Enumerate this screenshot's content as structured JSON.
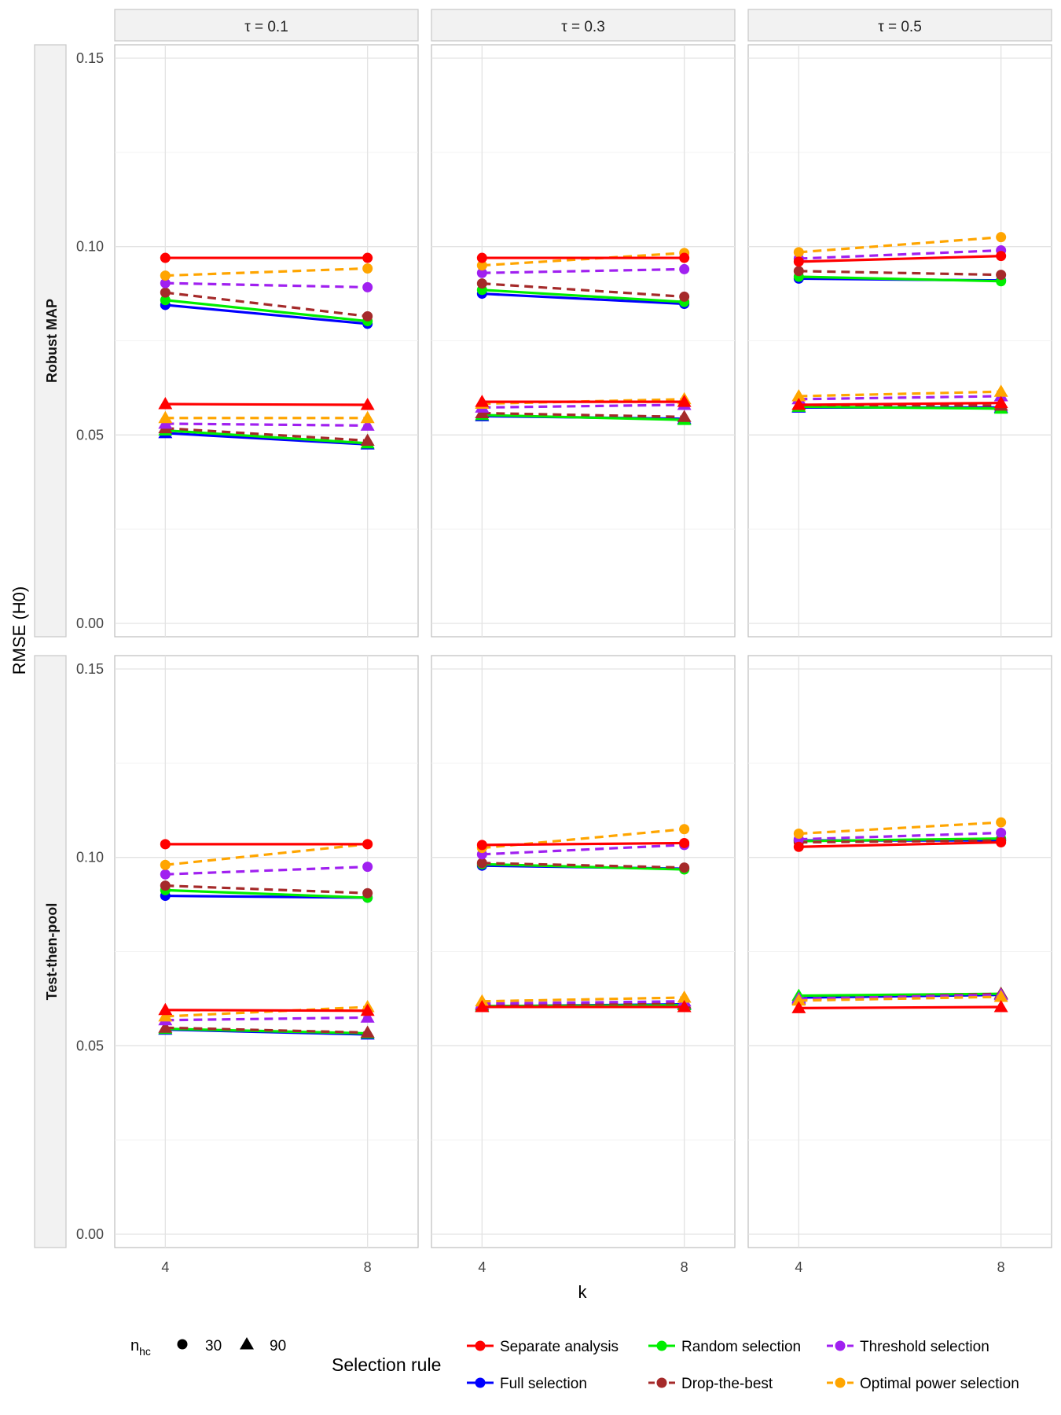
{
  "figure": {
    "ylabel": "RMSE (H0)",
    "xlabel": "k",
    "col_strips": [
      "τ = 0.1",
      "τ = 0.3",
      "τ = 0.5"
    ],
    "row_strips": [
      "Robust MAP",
      "Test-then-pool"
    ],
    "x_ticks": [
      "4",
      "8"
    ],
    "y_ticks": [
      "0.00",
      "0.05",
      "0.10",
      "0.15"
    ]
  },
  "legend": {
    "nhc_title_main": "n",
    "nhc_title_sub": "hc",
    "nhc_items": [
      {
        "label": "30",
        "shape": "circle"
      },
      {
        "label": "90",
        "shape": "triangle"
      }
    ],
    "rule_title": "Selection rule",
    "rule_items": [
      {
        "label": "Separate analysis",
        "color": "#ff0000",
        "dashed": false
      },
      {
        "label": "Full selection",
        "color": "#0000ff",
        "dashed": false
      },
      {
        "label": "Random selection",
        "color": "#00ee00",
        "dashed": false
      },
      {
        "label": "Drop-the-best",
        "color": "#a52a2a",
        "dashed": true
      },
      {
        "label": "Threshold selection",
        "color": "#a020f0",
        "dashed": true
      },
      {
        "label": "Optimal power selection",
        "color": "#ffa500",
        "dashed": true
      }
    ]
  },
  "chart_data": {
    "type": "line",
    "x": [
      4,
      8
    ],
    "ylim": [
      0,
      0.15
    ],
    "grid": true,
    "panels": [
      {
        "row": "Robust MAP",
        "col": "τ = 0.1",
        "series": [
          {
            "rule": "Separate analysis",
            "nhc": 30,
            "values": [
              0.097,
              0.097
            ]
          },
          {
            "rule": "Full selection",
            "nhc": 30,
            "values": [
              0.0845,
              0.0795
            ]
          },
          {
            "rule": "Random selection",
            "nhc": 30,
            "values": [
              0.0858,
              0.0802
            ]
          },
          {
            "rule": "Drop-the-best",
            "nhc": 30,
            "values": [
              0.0878,
              0.0815
            ]
          },
          {
            "rule": "Threshold selection",
            "nhc": 30,
            "values": [
              0.0903,
              0.0892
            ]
          },
          {
            "rule": "Optimal power selection",
            "nhc": 30,
            "values": [
              0.0923,
              0.0942
            ]
          },
          {
            "rule": "Separate analysis",
            "nhc": 90,
            "values": [
              0.0582,
              0.058
            ]
          },
          {
            "rule": "Full selection",
            "nhc": 90,
            "values": [
              0.0505,
              0.0475
            ]
          },
          {
            "rule": "Random selection",
            "nhc": 90,
            "values": [
              0.0512,
              0.0478
            ]
          },
          {
            "rule": "Drop-the-best",
            "nhc": 90,
            "values": [
              0.0518,
              0.0485
            ]
          },
          {
            "rule": "Threshold selection",
            "nhc": 90,
            "values": [
              0.053,
              0.0525
            ]
          },
          {
            "rule": "Optimal power selection",
            "nhc": 90,
            "values": [
              0.0545,
              0.0545
            ]
          }
        ]
      },
      {
        "row": "Robust MAP",
        "col": "τ = 0.3",
        "series": [
          {
            "rule": "Separate analysis",
            "nhc": 30,
            "values": [
              0.097,
              0.097
            ]
          },
          {
            "rule": "Full selection",
            "nhc": 30,
            "values": [
              0.0875,
              0.0848
            ]
          },
          {
            "rule": "Random selection",
            "nhc": 30,
            "values": [
              0.0885,
              0.0853
            ]
          },
          {
            "rule": "Drop-the-best",
            "nhc": 30,
            "values": [
              0.0902,
              0.0867
            ]
          },
          {
            "rule": "Threshold selection",
            "nhc": 30,
            "values": [
              0.093,
              0.094
            ]
          },
          {
            "rule": "Optimal power selection",
            "nhc": 30,
            "values": [
              0.095,
              0.0983
            ]
          },
          {
            "rule": "Separate analysis",
            "nhc": 90,
            "values": [
              0.0588,
              0.0588
            ]
          },
          {
            "rule": "Full selection",
            "nhc": 90,
            "values": [
              0.055,
              0.0543
            ]
          },
          {
            "rule": "Random selection",
            "nhc": 90,
            "values": [
              0.0553,
              0.054
            ]
          },
          {
            "rule": "Drop-the-best",
            "nhc": 90,
            "values": [
              0.0558,
              0.0548
            ]
          },
          {
            "rule": "Threshold selection",
            "nhc": 90,
            "values": [
              0.0573,
              0.058
            ]
          },
          {
            "rule": "Optimal power selection",
            "nhc": 90,
            "values": [
              0.0583,
              0.0595
            ]
          }
        ]
      },
      {
        "row": "Robust MAP",
        "col": "τ = 0.5",
        "series": [
          {
            "rule": "Separate analysis",
            "nhc": 30,
            "values": [
              0.096,
              0.0975
            ]
          },
          {
            "rule": "Full selection",
            "nhc": 30,
            "values": [
              0.0915,
              0.091
            ]
          },
          {
            "rule": "Random selection",
            "nhc": 30,
            "values": [
              0.092,
              0.0908
            ]
          },
          {
            "rule": "Drop-the-best",
            "nhc": 30,
            "values": [
              0.0935,
              0.0925
            ]
          },
          {
            "rule": "Threshold selection",
            "nhc": 30,
            "values": [
              0.0968,
              0.099
            ]
          },
          {
            "rule": "Optimal power selection",
            "nhc": 30,
            "values": [
              0.0985,
              0.1025
            ]
          },
          {
            "rule": "Separate analysis",
            "nhc": 90,
            "values": [
              0.058,
              0.0585
            ]
          },
          {
            "rule": "Full selection",
            "nhc": 90,
            "values": [
              0.0573,
              0.0573
            ]
          },
          {
            "rule": "Random selection",
            "nhc": 90,
            "values": [
              0.0575,
              0.057
            ]
          },
          {
            "rule": "Drop-the-best",
            "nhc": 90,
            "values": [
              0.058,
              0.0578
            ]
          },
          {
            "rule": "Threshold selection",
            "nhc": 90,
            "values": [
              0.0595,
              0.0603
            ]
          },
          {
            "rule": "Optimal power selection",
            "nhc": 90,
            "values": [
              0.0603,
              0.0615
            ]
          }
        ]
      },
      {
        "row": "Test-then-pool",
        "col": "τ = 0.1",
        "series": [
          {
            "rule": "Separate analysis",
            "nhc": 30,
            "values": [
              0.1035,
              0.1035
            ]
          },
          {
            "rule": "Full selection",
            "nhc": 30,
            "values": [
              0.0898,
              0.0893
            ]
          },
          {
            "rule": "Random selection",
            "nhc": 30,
            "values": [
              0.0913,
              0.0893
            ]
          },
          {
            "rule": "Drop-the-best",
            "nhc": 30,
            "values": [
              0.0925,
              0.0905
            ]
          },
          {
            "rule": "Threshold selection",
            "nhc": 30,
            "values": [
              0.0955,
              0.0975
            ]
          },
          {
            "rule": "Optimal power selection",
            "nhc": 30,
            "values": [
              0.098,
              0.1035
            ]
          },
          {
            "rule": "Separate analysis",
            "nhc": 90,
            "values": [
              0.0595,
              0.0593
            ]
          },
          {
            "rule": "Full selection",
            "nhc": 90,
            "values": [
              0.0543,
              0.053
            ]
          },
          {
            "rule": "Random selection",
            "nhc": 90,
            "values": [
              0.0545,
              0.0533
            ]
          },
          {
            "rule": "Drop-the-best",
            "nhc": 90,
            "values": [
              0.0548,
              0.0535
            ]
          },
          {
            "rule": "Threshold selection",
            "nhc": 90,
            "values": [
              0.0568,
              0.0575
            ]
          },
          {
            "rule": "Optimal power selection",
            "nhc": 90,
            "values": [
              0.0578,
              0.0603
            ]
          }
        ]
      },
      {
        "row": "Test-then-pool",
        "col": "τ = 0.3",
        "series": [
          {
            "rule": "Separate analysis",
            "nhc": 30,
            "values": [
              0.1033,
              0.1038
            ]
          },
          {
            "rule": "Full selection",
            "nhc": 30,
            "values": [
              0.0978,
              0.097
            ]
          },
          {
            "rule": "Random selection",
            "nhc": 30,
            "values": [
              0.0982,
              0.0968
            ]
          },
          {
            "rule": "Drop-the-best",
            "nhc": 30,
            "values": [
              0.0985,
              0.0973
            ]
          },
          {
            "rule": "Threshold selection",
            "nhc": 30,
            "values": [
              0.1008,
              0.1033
            ]
          },
          {
            "rule": "Optimal power selection",
            "nhc": 30,
            "values": [
              0.1025,
              0.1075
            ]
          },
          {
            "rule": "Separate analysis",
            "nhc": 90,
            "values": [
              0.0603,
              0.0603
            ]
          },
          {
            "rule": "Full selection",
            "nhc": 90,
            "values": [
              0.0605,
              0.061
            ]
          },
          {
            "rule": "Random selection",
            "nhc": 90,
            "values": [
              0.0605,
              0.0608
            ]
          },
          {
            "rule": "Drop-the-best",
            "nhc": 90,
            "values": [
              0.0608,
              0.0613
            ]
          },
          {
            "rule": "Threshold selection",
            "nhc": 90,
            "values": [
              0.0612,
              0.0618
            ]
          },
          {
            "rule": "Optimal power selection",
            "nhc": 90,
            "values": [
              0.0618,
              0.0628
            ]
          }
        ]
      },
      {
        "row": "Test-then-pool",
        "col": "τ = 0.5",
        "series": [
          {
            "rule": "Separate analysis",
            "nhc": 30,
            "values": [
              0.1028,
              0.104
            ]
          },
          {
            "rule": "Full selection",
            "nhc": 30,
            "values": [
              0.1045,
              0.1045
            ]
          },
          {
            "rule": "Random selection",
            "nhc": 30,
            "values": [
              0.1043,
              0.105
            ]
          },
          {
            "rule": "Drop-the-best",
            "nhc": 30,
            "values": [
              0.104,
              0.1045
            ]
          },
          {
            "rule": "Threshold selection",
            "nhc": 30,
            "values": [
              0.1048,
              0.1065
            ]
          },
          {
            "rule": "Optimal power selection",
            "nhc": 30,
            "values": [
              0.1063,
              0.1093
            ]
          },
          {
            "rule": "Separate analysis",
            "nhc": 90,
            "values": [
              0.06,
              0.0603
            ]
          },
          {
            "rule": "Full selection",
            "nhc": 90,
            "values": [
              0.0628,
              0.0635
            ]
          },
          {
            "rule": "Random selection",
            "nhc": 90,
            "values": [
              0.0633,
              0.0638
            ]
          },
          {
            "rule": "Drop-the-best",
            "nhc": 90,
            "values": [
              0.0623,
              0.0638
            ]
          },
          {
            "rule": "Threshold selection",
            "nhc": 90,
            "values": [
              0.0625,
              0.0635
            ]
          },
          {
            "rule": "Optimal power selection",
            "nhc": 90,
            "values": [
              0.062,
              0.063
            ]
          }
        ]
      }
    ]
  }
}
